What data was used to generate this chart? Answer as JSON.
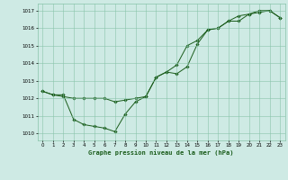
{
  "title": "Graphe pression niveau de la mer (hPa)",
  "background_color": "#ceeae4",
  "grid_color": "#88c4aa",
  "line_color": "#1a5c1a",
  "marker_color": "#1a5c1a",
  "xlim": [
    -0.5,
    23.5
  ],
  "ylim": [
    1009.6,
    1017.4
  ],
  "xticks": [
    0,
    1,
    2,
    3,
    4,
    5,
    6,
    7,
    8,
    9,
    10,
    11,
    12,
    13,
    14,
    15,
    16,
    17,
    18,
    19,
    20,
    21,
    22,
    23
  ],
  "yticks": [
    1010,
    1011,
    1012,
    1013,
    1014,
    1015,
    1016,
    1017
  ],
  "series1_x": [
    0,
    1,
    2,
    3,
    4,
    5,
    6,
    7,
    8,
    9,
    10,
    11,
    12,
    13,
    14,
    15,
    16,
    17,
    18,
    19,
    20,
    21,
    22,
    23
  ],
  "series1_y": [
    1012.4,
    1012.2,
    1012.2,
    1010.8,
    1010.5,
    1010.4,
    1010.3,
    1010.1,
    1011.1,
    1011.8,
    1012.1,
    1013.2,
    1013.5,
    1013.4,
    1013.8,
    1015.1,
    1015.9,
    1016.0,
    1016.4,
    1016.4,
    1016.8,
    1016.9,
    1017.0,
    1016.6
  ],
  "series2_x": [
    0,
    1,
    2,
    3,
    4,
    5,
    6,
    7,
    8,
    9,
    10,
    11,
    12,
    13,
    14,
    15,
    16,
    17,
    18,
    19,
    20,
    21,
    22,
    23
  ],
  "series2_y": [
    1012.4,
    1012.2,
    1012.1,
    1012.0,
    1012.0,
    1012.0,
    1012.0,
    1011.8,
    1011.9,
    1012.0,
    1012.1,
    1013.2,
    1013.5,
    1013.9,
    1015.0,
    1015.3,
    1015.9,
    1016.0,
    1016.4,
    1016.7,
    1016.8,
    1017.0,
    1017.0,
    1016.6
  ]
}
